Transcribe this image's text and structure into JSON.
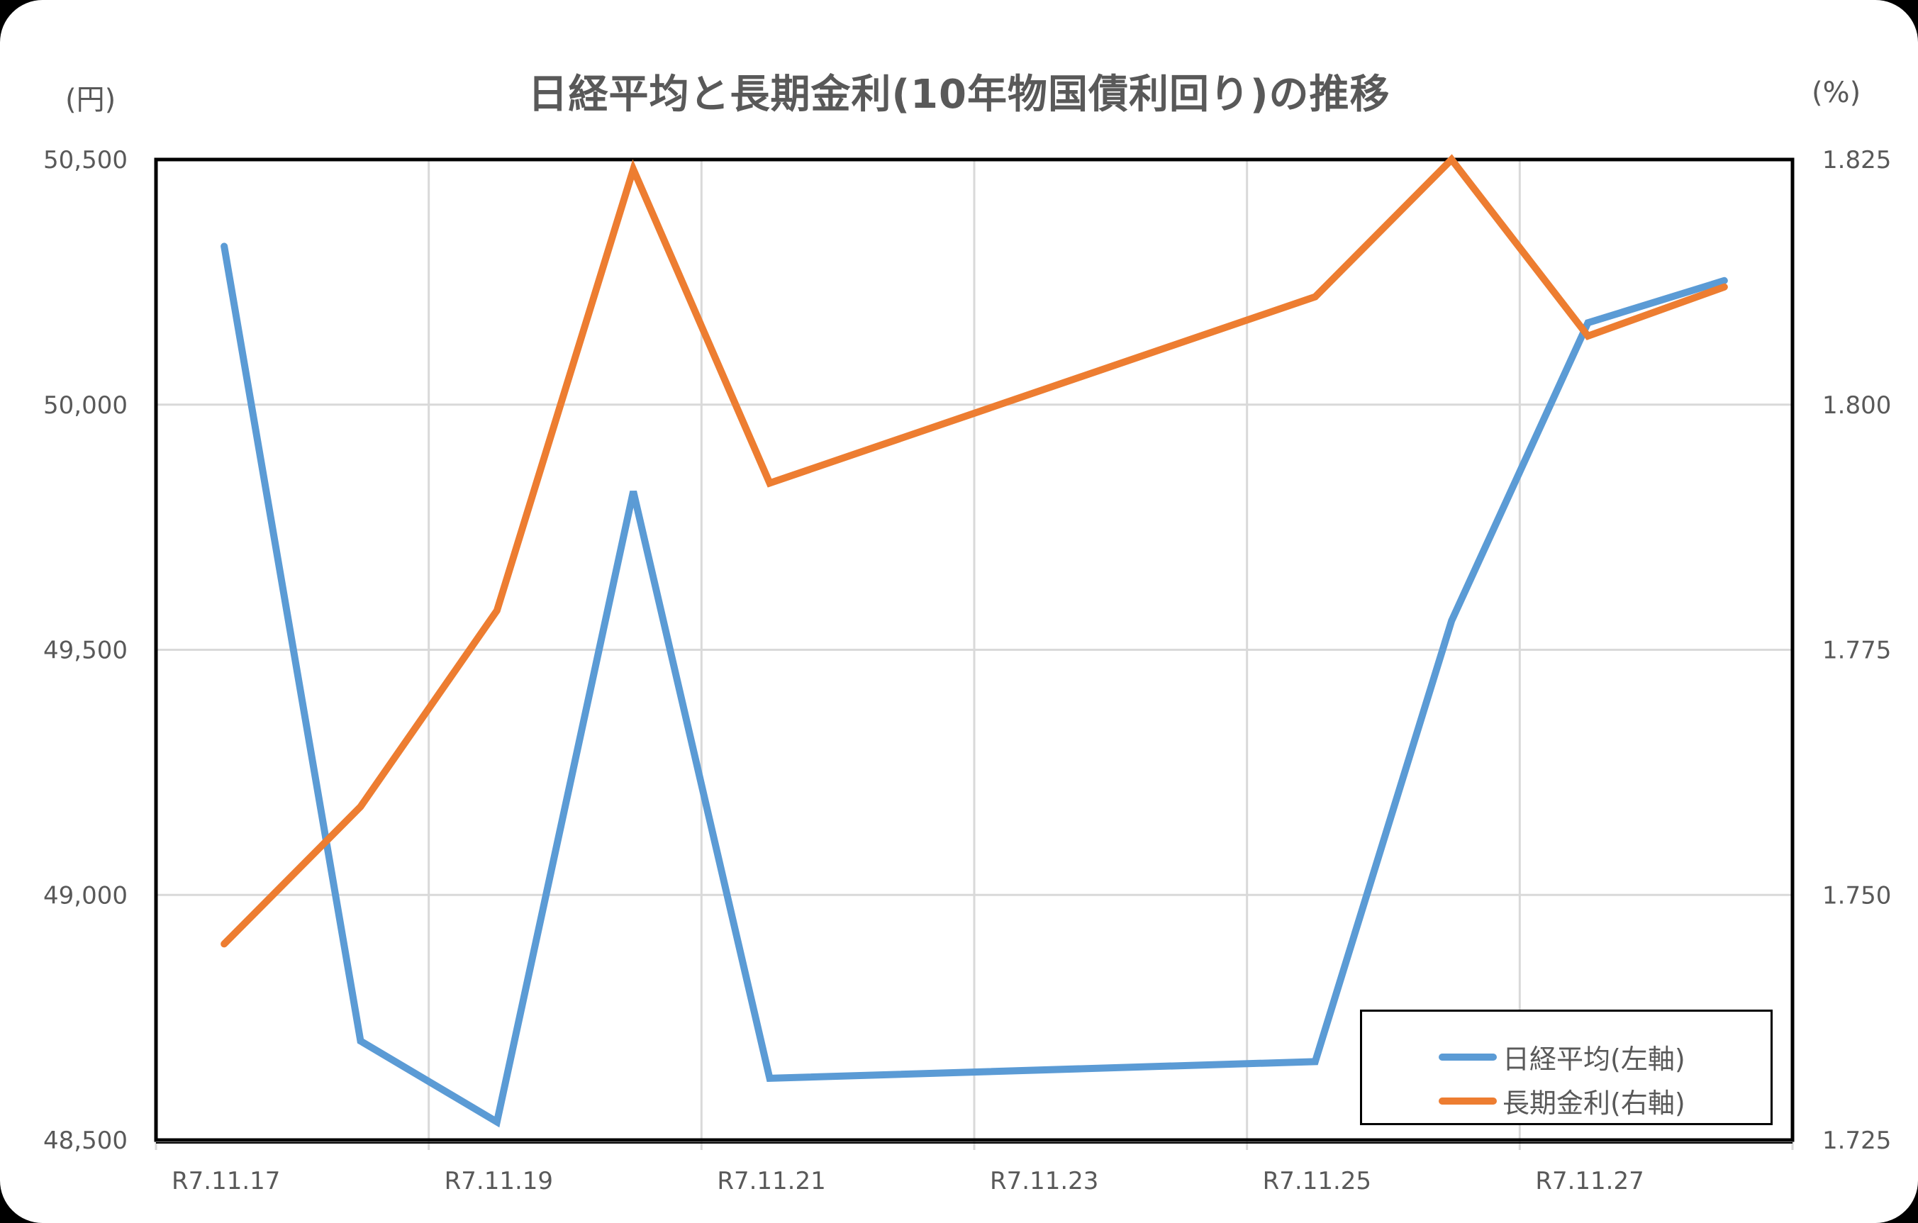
{
  "chart_title": "日経平均と長期金利(10年物国債利回り)の推移",
  "left_unit": "(円)",
  "right_unit": "(%)",
  "legend": [
    {
      "label": "日経平均(左軸)",
      "color": "#5B9BD5"
    },
    {
      "label": "長期金利(右軸)",
      "color": "#ED7D31"
    }
  ],
  "chart_data": {
    "type": "line",
    "title": "日経平均と長期金利(10年物国債利回り)の推移",
    "xlabel": "",
    "x_slot_count": 12,
    "x_tick_labels": [
      {
        "slot": 0,
        "label": "R7.11.17"
      },
      {
        "slot": 2,
        "label": "R7.11.19"
      },
      {
        "slot": 4,
        "label": "R7.11.21"
      },
      {
        "slot": 6,
        "label": "R7.11.23"
      },
      {
        "slot": 8,
        "label": "R7.11.25"
      },
      {
        "slot": 10,
        "label": "R7.11.27"
      }
    ],
    "series": [
      {
        "name": "日経平均(左軸)",
        "axis": "left",
        "color": "#5B9BD5",
        "points": [
          {
            "slot": 0,
            "value": 50323
          },
          {
            "slot": 1,
            "value": 48702
          },
          {
            "slot": 2,
            "value": 48537
          },
          {
            "slot": 3,
            "value": 49823
          },
          {
            "slot": 4,
            "value": 48626
          },
          {
            "slot": 8,
            "value": 48660
          },
          {
            "slot": 9,
            "value": 49559
          },
          {
            "slot": 10,
            "value": 50167
          },
          {
            "slot": 11,
            "value": 50253
          }
        ]
      },
      {
        "name": "長期金利(右軸)",
        "axis": "right",
        "color": "#ED7D31",
        "points": [
          {
            "slot": 0,
            "value": 1.745
          },
          {
            "slot": 1,
            "value": 1.759
          },
          {
            "slot": 2,
            "value": 1.779
          },
          {
            "slot": 3,
            "value": 1.824
          },
          {
            "slot": 4,
            "value": 1.792
          },
          {
            "slot": 8,
            "value": 1.811
          },
          {
            "slot": 9,
            "value": 1.825
          },
          {
            "slot": 10,
            "value": 1.807
          },
          {
            "slot": 11,
            "value": 1.812
          }
        ]
      }
    ],
    "y_left": {
      "label": "(円)",
      "ylim": [
        48500,
        50500
      ],
      "ticks": [
        "48,500",
        "49,000",
        "49,500",
        "50,000",
        "50,500"
      ]
    },
    "y_right": {
      "label": "(%)",
      "ylim": [
        1.725,
        1.825
      ],
      "ticks": [
        "1.725",
        "1.750",
        "1.775",
        "1.800",
        "1.825"
      ]
    },
    "grid": true,
    "legend_position": "bottom-right inside"
  }
}
